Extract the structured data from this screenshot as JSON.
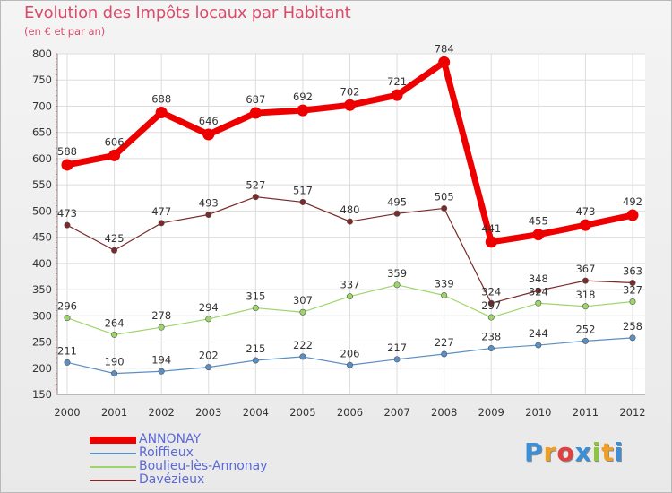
{
  "chart_data": {
    "type": "line",
    "title": "Evolution des Impôts locaux par Habitant",
    "subtitle": "(en € et par an)",
    "categories": [
      "2000",
      "2001",
      "2002",
      "2003",
      "2004",
      "2005",
      "2006",
      "2007",
      "2008",
      "2009",
      "2010",
      "2011",
      "2012"
    ],
    "ylim": [
      150,
      800
    ],
    "yticks": [
      150,
      200,
      250,
      300,
      350,
      400,
      450,
      500,
      550,
      600,
      650,
      700,
      750,
      800
    ],
    "series": [
      {
        "name": "ANNONAY",
        "color": "#ee0000",
        "values": [
          588,
          606,
          688,
          646,
          687,
          692,
          702,
          721,
          784,
          441,
          455,
          473,
          492
        ]
      },
      {
        "name": "Roiffieux",
        "color": "#5b8fc4",
        "values": [
          211,
          190,
          194,
          202,
          215,
          222,
          206,
          217,
          227,
          238,
          244,
          252,
          258
        ]
      },
      {
        "name": "Boulieu-lès-Annonay",
        "color": "#9ed56a",
        "values": [
          296,
          264,
          278,
          294,
          315,
          307,
          337,
          359,
          339,
          297,
          324,
          318,
          327
        ]
      },
      {
        "name": "Davézieux",
        "color": "#7a2a2a",
        "values": [
          473,
          425,
          477,
          493,
          527,
          517,
          480,
          495,
          505,
          324,
          348,
          367,
          363
        ]
      }
    ]
  },
  "logo": {
    "letters": [
      "P",
      "r",
      "o",
      "x",
      "i",
      "t",
      "i"
    ]
  }
}
